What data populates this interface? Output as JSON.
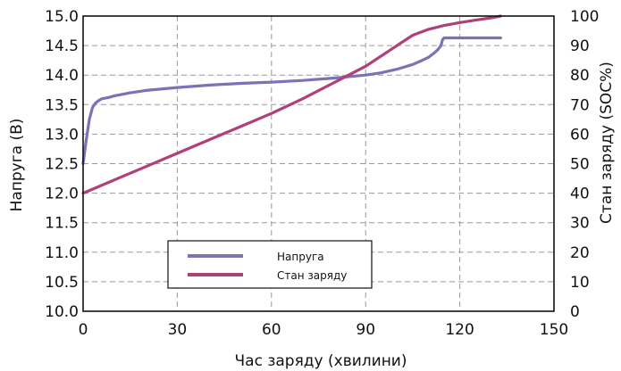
{
  "chart_data": {
    "type": "line",
    "title": "",
    "xlabel": "Час заряду (хвилини)",
    "ylabel": "Напруга (В)",
    "y2label": "Стан заряду (SOC%)",
    "xlim": [
      0,
      150
    ],
    "ylim": [
      10.0,
      15.0
    ],
    "y2lim": [
      0,
      100
    ],
    "x_ticks": [
      "0",
      "30",
      "60",
      "90",
      "120",
      "150"
    ],
    "y_ticks": [
      "10.0",
      "10.5",
      "11.0",
      "11.5",
      "12.0",
      "12.5",
      "13.0",
      "13.5",
      "14.0",
      "14.5",
      "15.0"
    ],
    "y2_ticks": [
      "0",
      "10",
      "20",
      "30",
      "40",
      "50",
      "60",
      "70",
      "80",
      "90",
      "100"
    ],
    "grid": true,
    "legend_position": "bottom-center",
    "series": [
      {
        "name": "Напруга",
        "axis": "left",
        "color": "#7b72b8",
        "x": [
          0,
          1,
          2,
          3,
          4,
          5,
          6,
          8,
          10,
          15,
          20,
          30,
          40,
          50,
          60,
          70,
          80,
          90,
          95,
          100,
          105,
          108,
          110,
          112,
          113,
          114,
          114.5,
          115,
          120,
          125,
          130,
          133
        ],
        "y": [
          12.5,
          12.9,
          13.25,
          13.45,
          13.53,
          13.57,
          13.6,
          13.62,
          13.65,
          13.7,
          13.74,
          13.79,
          13.83,
          13.86,
          13.88,
          13.91,
          13.95,
          14.0,
          14.04,
          14.1,
          14.18,
          14.25,
          14.3,
          14.38,
          14.43,
          14.5,
          14.6,
          14.63,
          14.63,
          14.63,
          14.63,
          14.63
        ]
      },
      {
        "name": "Стан заряду",
        "axis": "right",
        "color": "#b0407a",
        "x": [
          0,
          10,
          20,
          30,
          40,
          50,
          60,
          70,
          80,
          90,
          95,
          100,
          105,
          110,
          115,
          120,
          125,
          130,
          133
        ],
        "y": [
          40,
          44.5,
          49,
          53.5,
          58,
          62.5,
          67,
          72,
          77.5,
          83,
          86.5,
          90,
          93.5,
          95.5,
          96.8,
          97.8,
          98.6,
          99.4,
          100
        ]
      }
    ]
  }
}
